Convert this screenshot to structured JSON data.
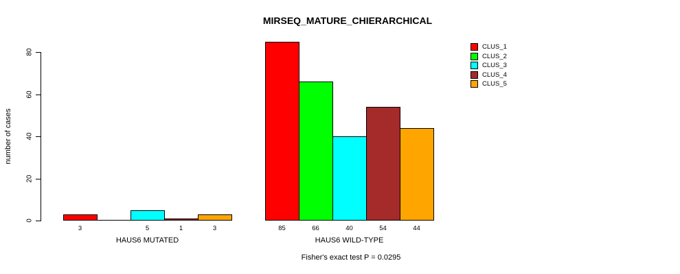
{
  "chart_data": {
    "type": "bar",
    "title": "MIRSEQ_MATURE_CHIERARCHICAL",
    "ylabel": "number of cases",
    "xlabel": "",
    "ylim": [
      0,
      80
    ],
    "yticks": [
      "0",
      "20",
      "40",
      "60",
      "80"
    ],
    "grid": false,
    "legend_position": "right",
    "series": [
      {
        "name": "CLUS_1",
        "color": "#FF0000"
      },
      {
        "name": "CLUS_2",
        "color": "#00FF00"
      },
      {
        "name": "CLUS_3",
        "color": "#00FFFF"
      },
      {
        "name": "CLUS_4",
        "color": "#A52A2A"
      },
      {
        "name": "CLUS_5",
        "color": "#FFA500"
      }
    ],
    "groups": [
      {
        "label": "HAUS6 MUTATED",
        "values": [
          3,
          0,
          5,
          1,
          3
        ],
        "value_labels": [
          "3",
          "",
          "5",
          "1",
          "3"
        ]
      },
      {
        "label": "HAUS6 WILD-TYPE",
        "values": [
          85,
          66,
          40,
          54,
          44
        ],
        "value_labels": [
          "85",
          "66",
          "40",
          "54",
          "44"
        ]
      }
    ],
    "annotation": "Fisher's exact test P = 0.0295"
  }
}
